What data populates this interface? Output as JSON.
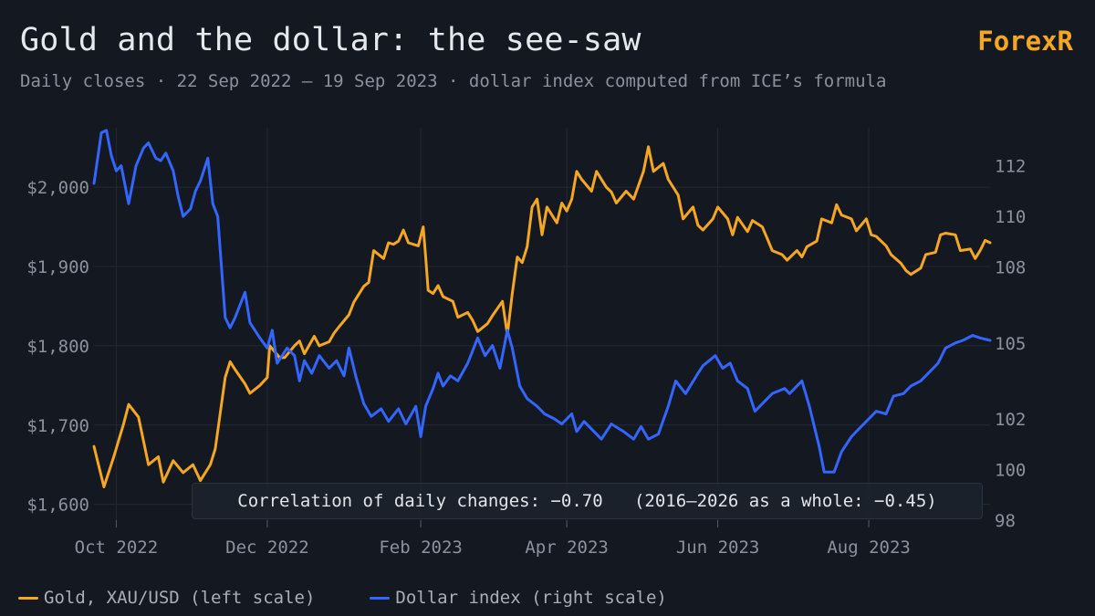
{
  "header": {
    "title": "Gold and the dollar: the see-saw",
    "brand": "ForexR",
    "subtitle": "Daily closes · 22 Sep 2022 – 19 Sep 2023 · dollar index computed from ICE’s formula"
  },
  "annotation": {
    "text": "Correlation of daily changes: −0.70   (2016–2026 as a whole: −0.45)"
  },
  "legend": {
    "gold_label": "Gold, XAU/USD (left scale)",
    "dollar_label": "Dollar index (right scale)"
  },
  "colors": {
    "gold": "#f5a623",
    "dollar": "#3366ff",
    "grid": "#232835"
  },
  "chart_data": {
    "type": "line",
    "title": "Gold and the dollar: the see-saw",
    "x_range": [
      "2022-09-22",
      "2023-09-19"
    ],
    "left_axis": {
      "ylim": [
        1580,
        2075
      ],
      "ticks": [
        1600,
        1700,
        1800,
        1900,
        2000
      ],
      "tick_labels": [
        "$1,600",
        "$1,700",
        "$1,800",
        "$1,900",
        "$2,000"
      ]
    },
    "right_axis": {
      "ylim": [
        98,
        113.5
      ],
      "ticks": [
        98,
        100,
        102,
        105,
        108,
        110,
        112
      ],
      "tick_labels": [
        "98",
        "100",
        "102",
        "105",
        "108",
        "110",
        "112"
      ]
    },
    "x_ticks": [
      {
        "date": "2022-10-01",
        "label": "Oct 2022"
      },
      {
        "date": "2022-12-01",
        "label": "Dec 2022"
      },
      {
        "date": "2023-02-01",
        "label": "Feb 2023"
      },
      {
        "date": "2023-04-01",
        "label": "Apr 2023"
      },
      {
        "date": "2023-06-01",
        "label": "Jun 2023"
      },
      {
        "date": "2023-08-01",
        "label": "Aug 2023"
      }
    ],
    "grid": true,
    "legend_position": "bottom-left",
    "series": [
      {
        "name": "Gold, XAU/USD (left scale)",
        "axis": "left",
        "points": [
          [
            "2022-09-22",
            1673
          ],
          [
            "2022-09-26",
            1622
          ],
          [
            "2022-09-30",
            1660
          ],
          [
            "2022-10-04",
            1702
          ],
          [
            "2022-10-06",
            1726
          ],
          [
            "2022-10-10",
            1710
          ],
          [
            "2022-10-14",
            1650
          ],
          [
            "2022-10-18",
            1660
          ],
          [
            "2022-10-20",
            1628
          ],
          [
            "2022-10-24",
            1655
          ],
          [
            "2022-10-28",
            1640
          ],
          [
            "2022-11-01",
            1650
          ],
          [
            "2022-11-04",
            1630
          ],
          [
            "2022-11-08",
            1650
          ],
          [
            "2022-11-10",
            1670
          ],
          [
            "2022-11-14",
            1760
          ],
          [
            "2022-11-16",
            1780
          ],
          [
            "2022-11-18",
            1770
          ],
          [
            "2022-11-22",
            1752
          ],
          [
            "2022-11-24",
            1740
          ],
          [
            "2022-11-28",
            1750
          ],
          [
            "2022-12-01",
            1760
          ],
          [
            "2022-12-02",
            1800
          ],
          [
            "2022-12-06",
            1785
          ],
          [
            "2022-12-08",
            1785
          ],
          [
            "2022-12-12",
            1800
          ],
          [
            "2022-12-14",
            1806
          ],
          [
            "2022-12-16",
            1790
          ],
          [
            "2022-12-20",
            1812
          ],
          [
            "2022-12-22",
            1800
          ],
          [
            "2022-12-26",
            1805
          ],
          [
            "2022-12-28",
            1816
          ],
          [
            "2022-12-30",
            1824
          ],
          [
            "2023-01-03",
            1839
          ],
          [
            "2023-01-05",
            1855
          ],
          [
            "2023-01-09",
            1875
          ],
          [
            "2023-01-11",
            1880
          ],
          [
            "2023-01-13",
            1920
          ],
          [
            "2023-01-17",
            1910
          ],
          [
            "2023-01-19",
            1930
          ],
          [
            "2023-01-21",
            1928
          ],
          [
            "2023-01-23",
            1932
          ],
          [
            "2023-01-25",
            1946
          ],
          [
            "2023-01-27",
            1930
          ],
          [
            "2023-01-31",
            1926
          ],
          [
            "2023-02-02",
            1950
          ],
          [
            "2023-02-03",
            1912
          ],
          [
            "2023-02-04",
            1870
          ],
          [
            "2023-02-06",
            1866
          ],
          [
            "2023-02-08",
            1876
          ],
          [
            "2023-02-10",
            1862
          ],
          [
            "2023-02-14",
            1856
          ],
          [
            "2023-02-16",
            1836
          ],
          [
            "2023-02-20",
            1842
          ],
          [
            "2023-02-22",
            1832
          ],
          [
            "2023-02-24",
            1818
          ],
          [
            "2023-02-28",
            1828
          ],
          [
            "2023-03-02",
            1838
          ],
          [
            "2023-03-06",
            1856
          ],
          [
            "2023-03-08",
            1814
          ],
          [
            "2023-03-10",
            1866
          ],
          [
            "2023-03-12",
            1912
          ],
          [
            "2023-03-14",
            1905
          ],
          [
            "2023-03-16",
            1925
          ],
          [
            "2023-03-18",
            1975
          ],
          [
            "2023-03-20",
            1985
          ],
          [
            "2023-03-22",
            1940
          ],
          [
            "2023-03-24",
            1975
          ],
          [
            "2023-03-28",
            1955
          ],
          [
            "2023-03-30",
            1980
          ],
          [
            "2023-04-01",
            1970
          ],
          [
            "2023-04-03",
            1985
          ],
          [
            "2023-04-05",
            2020
          ],
          [
            "2023-04-07",
            2010
          ],
          [
            "2023-04-11",
            1995
          ],
          [
            "2023-04-13",
            2020
          ],
          [
            "2023-04-17",
            2000
          ],
          [
            "2023-04-19",
            1994
          ],
          [
            "2023-04-21",
            1980
          ],
          [
            "2023-04-25",
            1995
          ],
          [
            "2023-04-28",
            1985
          ],
          [
            "2023-05-02",
            2020
          ],
          [
            "2023-05-04",
            2051
          ],
          [
            "2023-05-06",
            2020
          ],
          [
            "2023-05-10",
            2030
          ],
          [
            "2023-05-12",
            2010
          ],
          [
            "2023-05-16",
            1990
          ],
          [
            "2023-05-18",
            1960
          ],
          [
            "2023-05-22",
            1975
          ],
          [
            "2023-05-24",
            1952
          ],
          [
            "2023-05-26",
            1946
          ],
          [
            "2023-05-30",
            1960
          ],
          [
            "2023-06-01",
            1975
          ],
          [
            "2023-06-05",
            1960
          ],
          [
            "2023-06-07",
            1940
          ],
          [
            "2023-06-09",
            1962
          ],
          [
            "2023-06-13",
            1944
          ],
          [
            "2023-06-15",
            1958
          ],
          [
            "2023-06-19",
            1950
          ],
          [
            "2023-06-21",
            1935
          ],
          [
            "2023-06-23",
            1920
          ],
          [
            "2023-06-27",
            1915
          ],
          [
            "2023-06-29",
            1908
          ],
          [
            "2023-07-03",
            1920
          ],
          [
            "2023-07-05",
            1912
          ],
          [
            "2023-07-07",
            1925
          ],
          [
            "2023-07-11",
            1932
          ],
          [
            "2023-07-13",
            1960
          ],
          [
            "2023-07-17",
            1955
          ],
          [
            "2023-07-19",
            1978
          ],
          [
            "2023-07-21",
            1965
          ],
          [
            "2023-07-25",
            1960
          ],
          [
            "2023-07-27",
            1945
          ],
          [
            "2023-07-31",
            1960
          ],
          [
            "2023-08-02",
            1940
          ],
          [
            "2023-08-04",
            1938
          ],
          [
            "2023-08-08",
            1926
          ],
          [
            "2023-08-10",
            1915
          ],
          [
            "2023-08-14",
            1904
          ],
          [
            "2023-08-16",
            1895
          ],
          [
            "2023-08-18",
            1890
          ],
          [
            "2023-08-22",
            1898
          ],
          [
            "2023-08-24",
            1915
          ],
          [
            "2023-08-28",
            1918
          ],
          [
            "2023-08-30",
            1940
          ],
          [
            "2023-09-01",
            1942
          ],
          [
            "2023-09-05",
            1940
          ],
          [
            "2023-09-07",
            1920
          ],
          [
            "2023-09-11",
            1922
          ],
          [
            "2023-09-13",
            1910
          ],
          [
            "2023-09-15",
            1920
          ],
          [
            "2023-09-17",
            1933
          ],
          [
            "2023-09-19",
            1930
          ]
        ]
      },
      {
        "name": "Dollar index (right scale)",
        "axis": "right",
        "points": [
          [
            "2022-09-22",
            111.3
          ],
          [
            "2022-09-25",
            113.3
          ],
          [
            "2022-09-27",
            113.4
          ],
          [
            "2022-09-29",
            112.4
          ],
          [
            "2022-10-01",
            111.8
          ],
          [
            "2022-10-03",
            112.0
          ],
          [
            "2022-10-06",
            110.5
          ],
          [
            "2022-10-09",
            112.0
          ],
          [
            "2022-10-12",
            112.7
          ],
          [
            "2022-10-14",
            112.9
          ],
          [
            "2022-10-17",
            112.3
          ],
          [
            "2022-10-19",
            112.2
          ],
          [
            "2022-10-21",
            112.5
          ],
          [
            "2022-10-24",
            111.8
          ],
          [
            "2022-10-26",
            110.8
          ],
          [
            "2022-10-28",
            110.0
          ],
          [
            "2022-10-31",
            110.3
          ],
          [
            "2022-11-02",
            111.0
          ],
          [
            "2022-11-04",
            111.4
          ],
          [
            "2022-11-07",
            112.3
          ],
          [
            "2022-11-09",
            110.5
          ],
          [
            "2022-11-11",
            110.0
          ],
          [
            "2022-11-14",
            106.0
          ],
          [
            "2022-11-16",
            105.6
          ],
          [
            "2022-11-18",
            106.0
          ],
          [
            "2022-11-22",
            107.0
          ],
          [
            "2022-11-24",
            105.8
          ],
          [
            "2022-11-28",
            105.2
          ],
          [
            "2022-12-01",
            104.8
          ],
          [
            "2022-12-03",
            105.5
          ],
          [
            "2022-12-05",
            104.2
          ],
          [
            "2022-12-07",
            104.5
          ],
          [
            "2022-12-09",
            104.8
          ],
          [
            "2022-12-12",
            104.5
          ],
          [
            "2022-12-14",
            103.5
          ],
          [
            "2022-12-16",
            104.3
          ],
          [
            "2022-12-19",
            103.8
          ],
          [
            "2022-12-22",
            104.5
          ],
          [
            "2022-12-26",
            104.0
          ],
          [
            "2022-12-29",
            104.3
          ],
          [
            "2023-01-01",
            103.7
          ],
          [
            "2023-01-03",
            104.8
          ],
          [
            "2023-01-06",
            103.6
          ],
          [
            "2023-01-09",
            102.6
          ],
          [
            "2023-01-12",
            102.1
          ],
          [
            "2023-01-16",
            102.4
          ],
          [
            "2023-01-19",
            101.9
          ],
          [
            "2023-01-23",
            102.4
          ],
          [
            "2023-01-26",
            101.8
          ],
          [
            "2023-01-30",
            102.5
          ],
          [
            "2023-02-01",
            101.3
          ],
          [
            "2023-02-03",
            102.5
          ],
          [
            "2023-02-06",
            103.2
          ],
          [
            "2023-02-08",
            103.8
          ],
          [
            "2023-02-10",
            103.3
          ],
          [
            "2023-02-13",
            103.7
          ],
          [
            "2023-02-16",
            103.5
          ],
          [
            "2023-02-20",
            104.2
          ],
          [
            "2023-02-24",
            105.2
          ],
          [
            "2023-02-27",
            104.5
          ],
          [
            "2023-03-02",
            104.9
          ],
          [
            "2023-03-05",
            104.0
          ],
          [
            "2023-03-08",
            105.5
          ],
          [
            "2023-03-10",
            104.8
          ],
          [
            "2023-03-13",
            103.3
          ],
          [
            "2023-03-16",
            102.8
          ],
          [
            "2023-03-20",
            102.5
          ],
          [
            "2023-03-23",
            102.2
          ],
          [
            "2023-03-27",
            102.0
          ],
          [
            "2023-03-30",
            101.8
          ],
          [
            "2023-04-03",
            102.2
          ],
          [
            "2023-04-05",
            101.5
          ],
          [
            "2023-04-08",
            101.9
          ],
          [
            "2023-04-12",
            101.5
          ],
          [
            "2023-04-15",
            101.2
          ],
          [
            "2023-04-19",
            101.8
          ],
          [
            "2023-04-24",
            101.5
          ],
          [
            "2023-04-28",
            101.2
          ],
          [
            "2023-05-01",
            101.7
          ],
          [
            "2023-05-04",
            101.2
          ],
          [
            "2023-05-08",
            101.4
          ],
          [
            "2023-05-12",
            102.5
          ],
          [
            "2023-05-15",
            103.5
          ],
          [
            "2023-05-19",
            103.0
          ],
          [
            "2023-05-24",
            103.8
          ],
          [
            "2023-05-26",
            104.1
          ],
          [
            "2023-05-31",
            104.5
          ],
          [
            "2023-06-03",
            104.0
          ],
          [
            "2023-06-06",
            104.2
          ],
          [
            "2023-06-09",
            103.5
          ],
          [
            "2023-06-13",
            103.2
          ],
          [
            "2023-06-16",
            102.3
          ],
          [
            "2023-06-19",
            102.6
          ],
          [
            "2023-06-23",
            103.0
          ],
          [
            "2023-06-28",
            103.2
          ],
          [
            "2023-06-30",
            103.0
          ],
          [
            "2023-07-05",
            103.5
          ],
          [
            "2023-07-08",
            102.5
          ],
          [
            "2023-07-12",
            100.9
          ],
          [
            "2023-07-14",
            99.9
          ],
          [
            "2023-07-18",
            99.9
          ],
          [
            "2023-07-21",
            100.7
          ],
          [
            "2023-07-25",
            101.3
          ],
          [
            "2023-07-28",
            101.6
          ],
          [
            "2023-08-01",
            102.0
          ],
          [
            "2023-08-04",
            102.3
          ],
          [
            "2023-08-08",
            102.2
          ],
          [
            "2023-08-11",
            102.9
          ],
          [
            "2023-08-15",
            103.0
          ],
          [
            "2023-08-18",
            103.3
          ],
          [
            "2023-08-22",
            103.5
          ],
          [
            "2023-08-25",
            103.8
          ],
          [
            "2023-08-29",
            104.2
          ],
          [
            "2023-09-01",
            104.8
          ],
          [
            "2023-09-05",
            105.0
          ],
          [
            "2023-09-08",
            105.1
          ],
          [
            "2023-09-12",
            105.3
          ],
          [
            "2023-09-15",
            105.2
          ],
          [
            "2023-09-19",
            105.1
          ]
        ]
      }
    ]
  }
}
